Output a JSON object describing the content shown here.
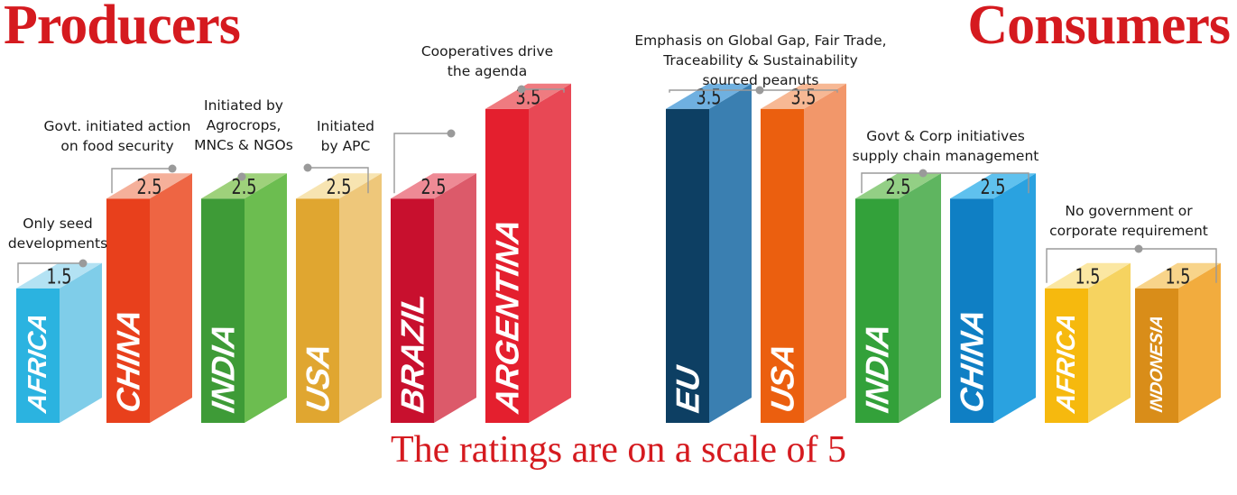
{
  "titles": {
    "producers": "Producers",
    "consumers": "Consumers"
  },
  "footer": "The ratings are on a scale of 5",
  "chart_data": [
    {
      "type": "bar",
      "group": "Producers",
      "categories": [
        "AFRICA",
        "CHINA",
        "INDIA",
        "USA",
        "BRAZIL",
        "ARGENTINA"
      ],
      "values": [
        1.5,
        2.5,
        2.5,
        2.5,
        2.5,
        3.5
      ],
      "value_labels": [
        "1.5",
        "2.5",
        "2.5",
        "2.5",
        "2.5",
        "3.5"
      ],
      "annotations": [
        [
          "Only seed",
          "developments"
        ],
        [
          "Govt. initiated action",
          "on food security"
        ],
        [
          "Initiated by",
          "Agrocrops,",
          "MNCs & NGOs"
        ],
        [
          "Initiated",
          "by APC"
        ],
        [],
        [
          "Cooperatives drive",
          "the agenda"
        ]
      ],
      "colors": [
        {
          "front": "#2bb3e0",
          "side": "#7fcde9",
          "top": "#b3e2f3"
        },
        {
          "front": "#e8401c",
          "side": "#ee6543",
          "top": "#f5b09a"
        },
        {
          "front": "#3e9b37",
          "side": "#6cbd50",
          "top": "#9ed17b"
        },
        {
          "front": "#e0a630",
          "side": "#eec77a",
          "top": "#f7e4b1"
        },
        {
          "front": "#c8102e",
          "side": "#dc5a6a",
          "top": "#ee8a95"
        },
        {
          "front": "#e41f2e",
          "side": "#e84855",
          "top": "#ef7b80"
        }
      ]
    },
    {
      "type": "bar",
      "group": "Consumers",
      "categories": [
        "EU",
        "USA",
        "INDIA",
        "CHINA",
        "AFRICA",
        "INDONESIA"
      ],
      "values": [
        3.5,
        3.5,
        2.5,
        2.5,
        1.5,
        1.5
      ],
      "value_labels": [
        "3.5",
        "3.5",
        "2.5",
        "2.5",
        "1.5",
        "1.5"
      ],
      "annotations": [
        [
          "Emphasis on Global Gap, Fair Trade,",
          "Traceability & Sustainability",
          "sourced peanuts"
        ],
        [],
        [
          "Govt & Corp initiatives",
          "supply chain management"
        ],
        [],
        [
          "No government or",
          "corporate requirement"
        ],
        []
      ],
      "colors": [
        {
          "front": "#0d3f63",
          "side": "#3a7fb1",
          "top": "#6fb0e0"
        },
        {
          "front": "#eb5f0f",
          "side": "#f2976a",
          "top": "#f7b894"
        },
        {
          "front": "#33a13a",
          "side": "#5fb560",
          "top": "#93cf85"
        },
        {
          "front": "#0f7fc4",
          "side": "#2aa2e0",
          "top": "#5fc1ee"
        },
        {
          "front": "#f6b90e",
          "side": "#f6d360",
          "top": "#fbe7a2"
        },
        {
          "front": "#d98d19",
          "side": "#f2ac3e",
          "top": "#f8d48a"
        }
      ]
    }
  ],
  "scale_max": 5
}
